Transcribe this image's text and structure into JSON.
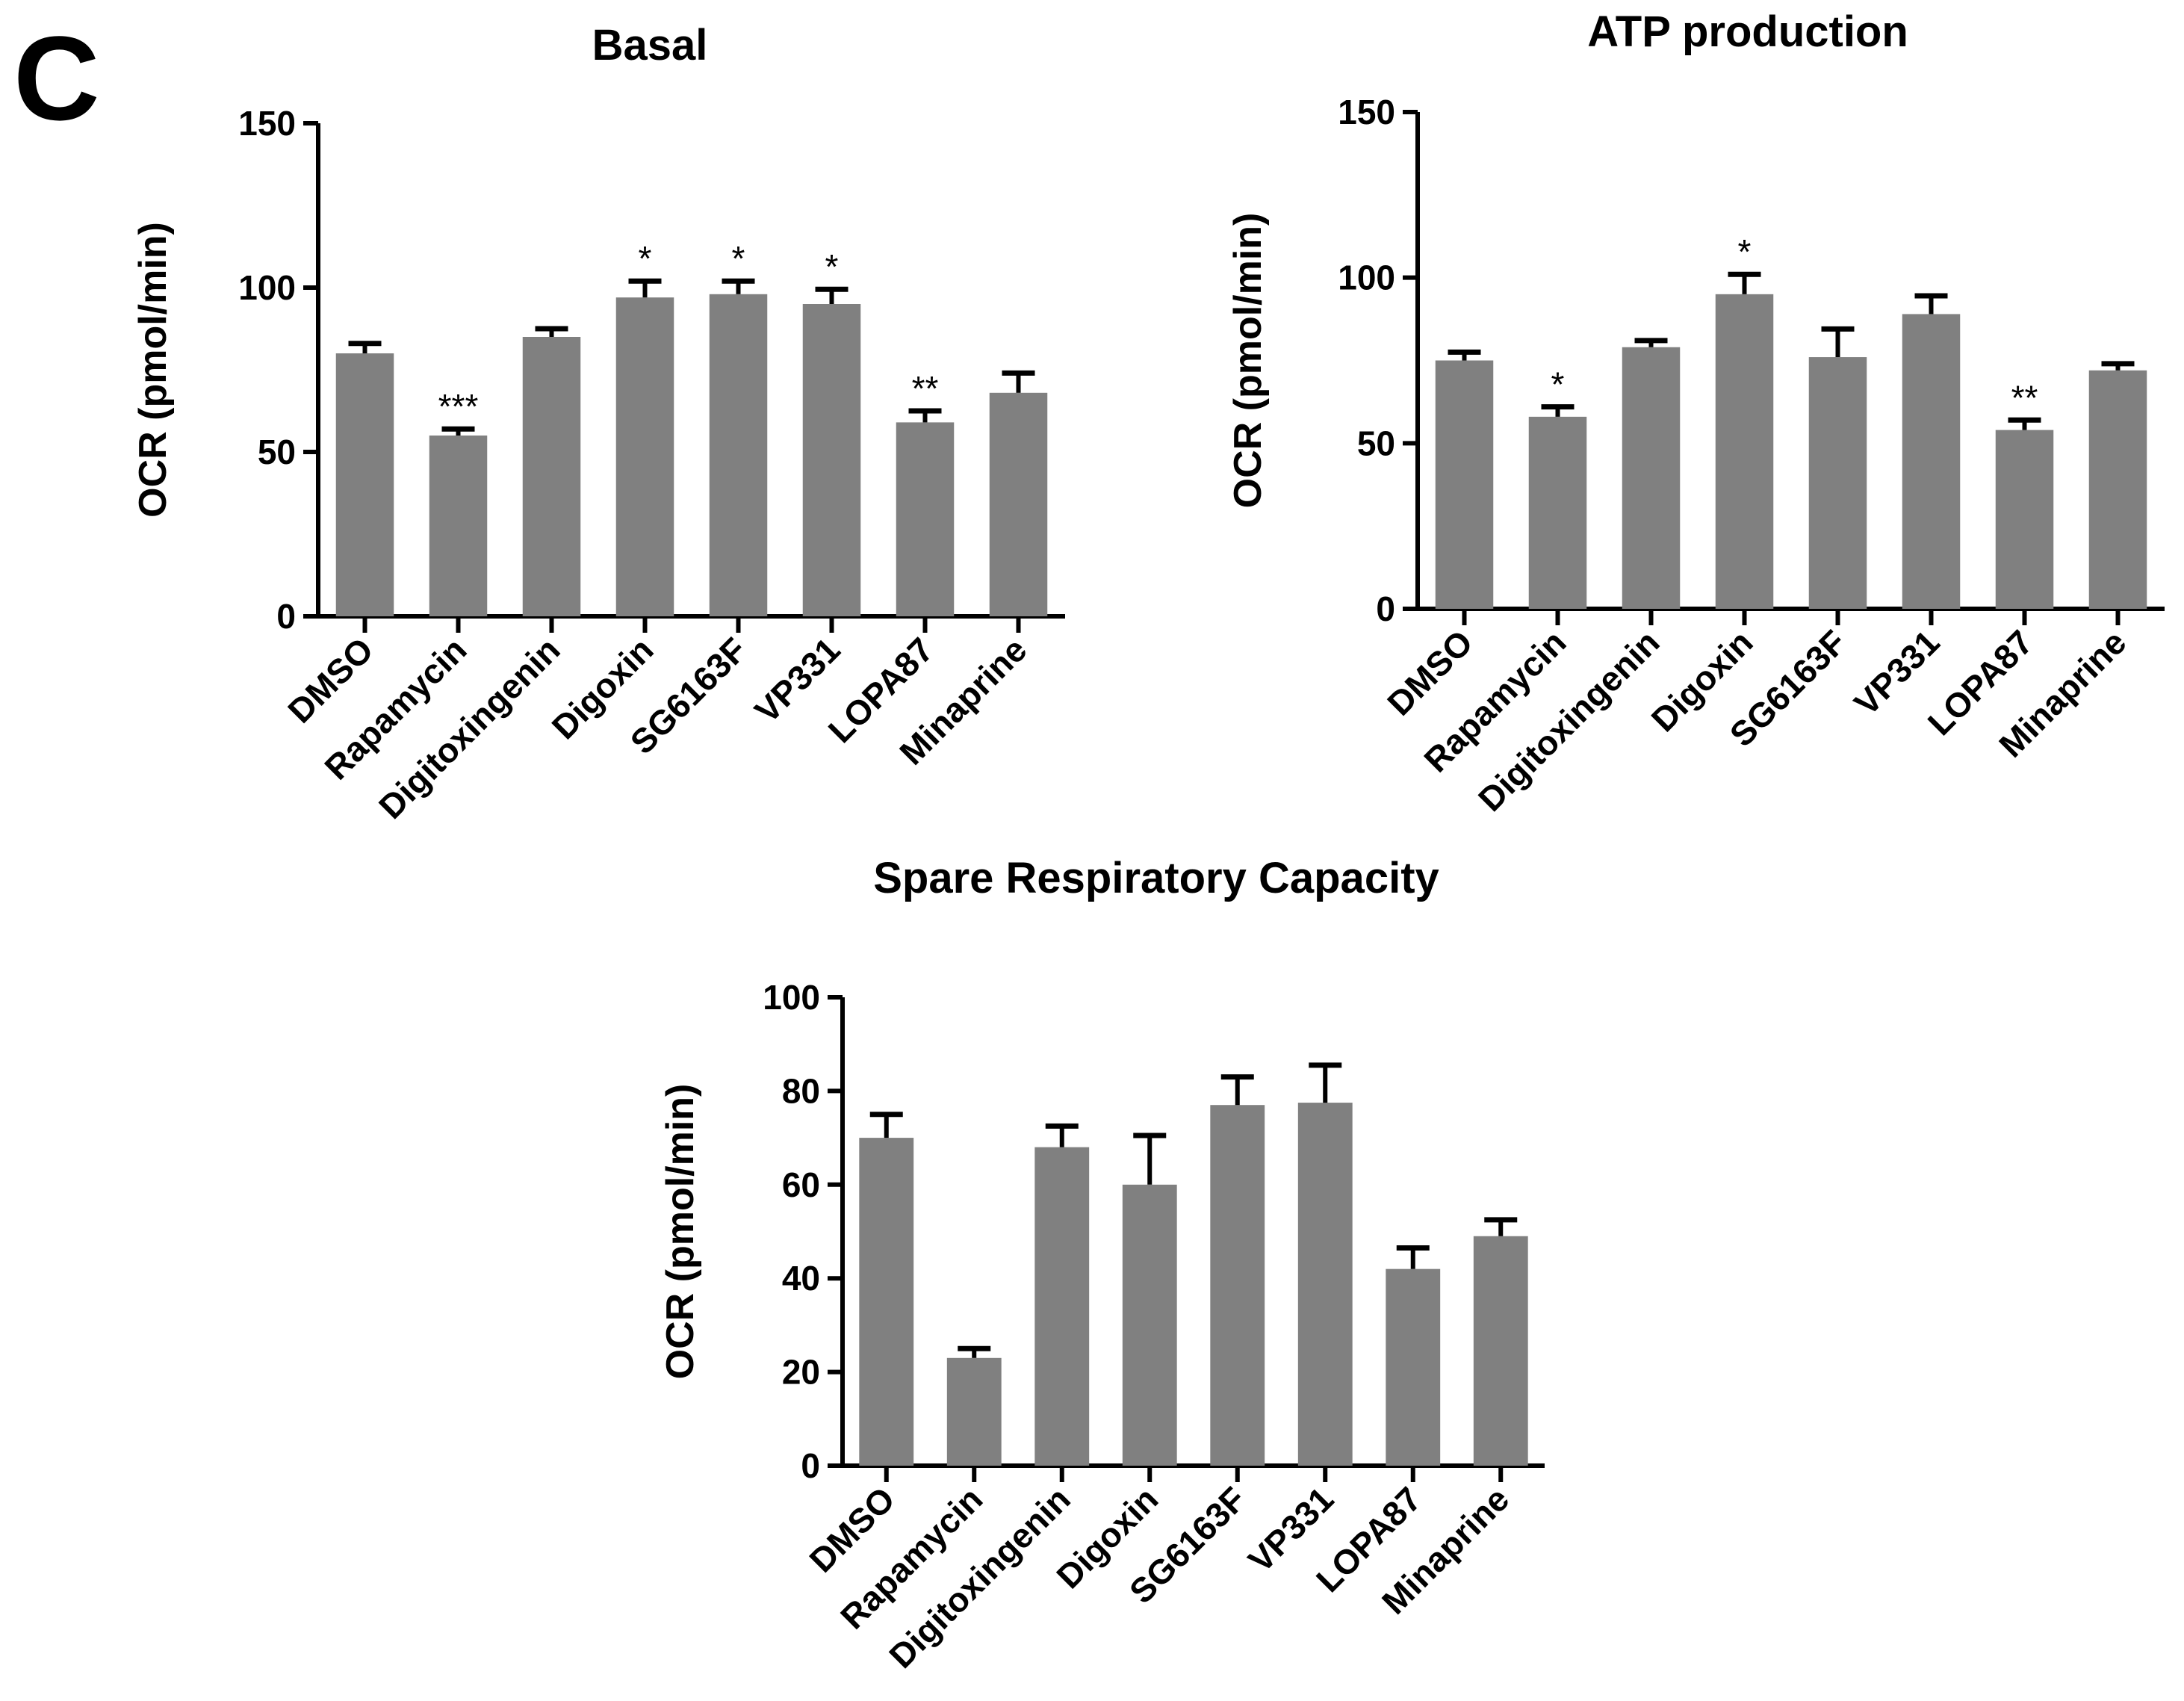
{
  "panel_label": "C",
  "colors": {
    "bar": "#808080",
    "axis": "#000000",
    "background": "#ffffff"
  },
  "chart_data": [
    {
      "id": "basal",
      "type": "bar",
      "title": "Basal",
      "xlabel": "",
      "ylabel": "OCR (pmol/min)",
      "ylim": [
        0,
        150
      ],
      "yticks": [
        0,
        50,
        100,
        150
      ],
      "categories": [
        "DMSO",
        "Rapamycin",
        "Digitoxingenin",
        "Digoxin",
        "SG6163F",
        "VP331",
        "LOPA87",
        "Minaprine"
      ],
      "values": [
        80,
        55,
        85,
        97,
        98,
        95,
        59,
        68
      ],
      "errors": [
        3,
        2,
        2.5,
        5,
        4,
        4.5,
        3.5,
        6
      ],
      "significance": [
        "",
        "***",
        "",
        "*",
        "*",
        "*",
        "**",
        ""
      ]
    },
    {
      "id": "atp",
      "type": "bar",
      "title": "ATP production",
      "xlabel": "",
      "ylabel": "OCR (pmol/min)",
      "ylim": [
        0,
        150
      ],
      "yticks": [
        0,
        50,
        100,
        150
      ],
      "categories": [
        "DMSO",
        "Rapamycin",
        "Digitoxingenin",
        "Digoxin",
        "SG6163F",
        "VP331",
        "LOPA87",
        "Minaprine"
      ],
      "values": [
        75,
        58,
        79,
        95,
        76,
        89,
        54,
        72
      ],
      "errors": [
        2.5,
        3,
        2,
        6,
        8.5,
        5.5,
        3,
        2
      ],
      "significance": [
        "",
        "*",
        "",
        "*",
        "",
        "",
        "**",
        ""
      ]
    },
    {
      "id": "spare",
      "type": "bar",
      "title": "Spare Respiratory Capacity",
      "xlabel": "",
      "ylabel": "OCR (pmol/min)",
      "ylim": [
        0,
        100
      ],
      "yticks": [
        0,
        20,
        40,
        60,
        80,
        100
      ],
      "categories": [
        "DMSO",
        "Rapamycin",
        "Digitoxingenin",
        "Digoxin",
        "SG6163F",
        "VP331",
        "LOPA87",
        "Minaprine"
      ],
      "values": [
        70,
        23,
        68,
        60,
        77,
        77.5,
        42,
        49
      ],
      "errors": [
        5,
        2,
        4.5,
        10.5,
        6,
        8,
        4.5,
        3.5
      ],
      "significance": [
        "",
        "",
        "",
        "",
        "",
        "",
        "",
        ""
      ]
    }
  ]
}
